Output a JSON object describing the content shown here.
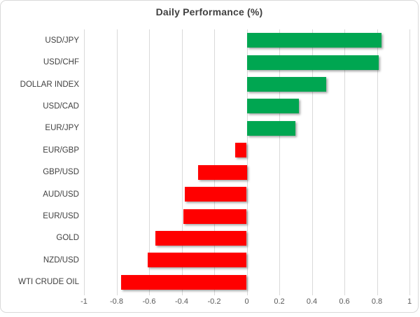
{
  "colors": {
    "positive": "#00A651",
    "negative": "#FF0000",
    "gridline": "#D9D9D9",
    "frame_border": "#D9D9D9",
    "title_text": "#404040",
    "category_text": "#404040",
    "tick_text": "#595959",
    "background": "#FFFFFF"
  },
  "chart_data": {
    "type": "bar",
    "orientation": "horizontal",
    "title": "Daily Performance (%)",
    "xlabel": "",
    "ylabel": "",
    "xlim": [
      -1,
      1
    ],
    "grid": "vertical",
    "legend": "none",
    "categories": [
      "USD/JPY",
      "USD/CHF",
      "DOLLAR INDEX",
      "USD/CAD",
      "EUR/JPY",
      "EUR/GBP",
      "GBP/USD",
      "AUD/USD",
      "EUR/USD",
      "GOLD",
      "NZD/USD",
      "WTI CRUDE OIL"
    ],
    "values": [
      0.83,
      0.81,
      0.49,
      0.32,
      0.3,
      -0.07,
      -0.3,
      -0.38,
      -0.39,
      -0.56,
      -0.61,
      -0.77
    ],
    "xticks": [
      -1,
      -0.8,
      -0.6,
      -0.4,
      -0.2,
      0,
      0.2,
      0.4,
      0.6,
      0.8,
      1
    ],
    "xtick_labels": [
      "-1",
      "-0.8",
      "-0.6",
      "-0.4",
      "-0.2",
      "0",
      "0.2",
      "0.4",
      "0.6",
      "0.8",
      "1"
    ]
  }
}
